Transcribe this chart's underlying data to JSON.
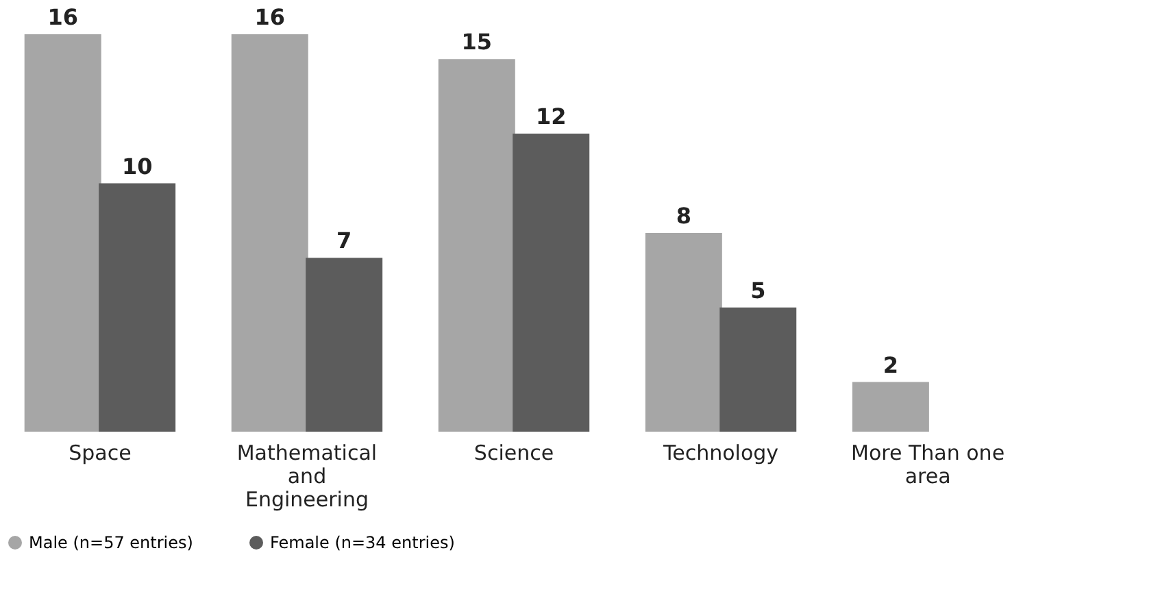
{
  "chart_data": {
    "type": "bar",
    "categories": [
      "Space",
      "Mathematical\nand\nEngineering",
      "Science",
      "Technology",
      "More Than one\narea"
    ],
    "series": [
      {
        "name": "Male (n=57 entries)",
        "color": "#a6a6a6",
        "values": [
          16,
          16,
          15,
          8,
          2
        ]
      },
      {
        "name": "Female (n=34 entries)",
        "color": "#5c5c5c",
        "values": [
          10,
          7,
          12,
          5,
          null
        ]
      }
    ],
    "data_labels": true,
    "legend": "bottom",
    "grid": false
  }
}
